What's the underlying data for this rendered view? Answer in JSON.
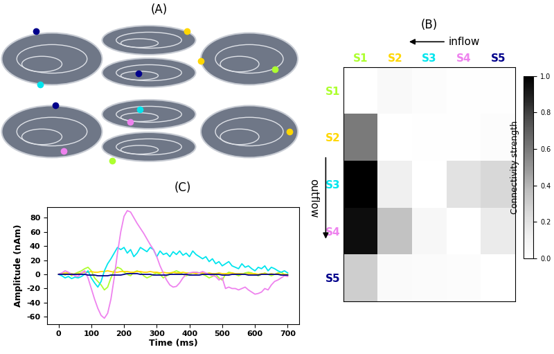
{
  "diagram": {
    "title": "(A)",
    "nodes": [
      {
        "color": "#adff2f"
      },
      {
        "color": "#ffd700"
      },
      {
        "color": "#00e5ee"
      },
      {
        "color": "#ee82ee"
      },
      {
        "color": "#00008b"
      }
    ]
  },
  "chart_data": [
    {
      "type": "heatmap",
      "title": "(B)",
      "categories": [
        "S1",
        "S2",
        "S3",
        "S4",
        "S5"
      ],
      "colors": [
        "#adff2f",
        "#ffd700",
        "#00e5ee",
        "#ee82ee",
        "#00008b"
      ],
      "annotations": [
        "inflow",
        "outflow"
      ],
      "cells": [
        [
          0.0,
          0.05,
          0.02,
          0.01,
          0.01
        ],
        [
          0.6,
          0.0,
          0.01,
          0.01,
          0.02
        ],
        [
          1.0,
          0.12,
          0.0,
          0.2,
          0.25
        ],
        [
          0.95,
          0.35,
          0.06,
          0.0,
          0.15
        ],
        [
          0.3,
          0.04,
          0.03,
          0.02,
          0.0
        ]
      ],
      "colorbar": {
        "label": "Connectivity strength",
        "range": [
          0,
          1
        ],
        "ticks": [
          {
            "value": 0,
            "label": "0.0"
          },
          {
            "value": 0.2,
            "label": "0.2"
          },
          {
            "value": 0.4,
            "label": "0.4"
          },
          {
            "value": 0.6,
            "label": "0.6"
          },
          {
            "value": 0.8,
            "label": "0.8"
          },
          {
            "value": 1,
            "label": "1.0"
          }
        ]
      }
    },
    {
      "type": "line",
      "title": "(C)",
      "x_label": "Time (ms)",
      "y_label": "Amplitude (nAm)",
      "x": [
        0,
        10,
        20,
        30,
        40,
        50,
        60,
        70,
        80,
        90,
        100,
        110,
        120,
        130,
        140,
        150,
        160,
        170,
        180,
        190,
        200,
        210,
        220,
        230,
        240,
        250,
        260,
        270,
        280,
        290,
        300,
        310,
        320,
        330,
        340,
        350,
        360,
        370,
        380,
        390,
        400,
        410,
        420,
        430,
        440,
        450,
        460,
        470,
        480,
        490,
        500,
        510,
        520,
        530,
        540,
        550,
        560,
        570,
        580,
        590,
        600,
        610,
        620,
        630,
        640,
        650,
        660,
        670,
        680,
        690,
        700
      ],
      "xlim": [
        -35,
        735
      ],
      "xticks": [
        0,
        100,
        200,
        300,
        400,
        500,
        600,
        700
      ],
      "ylim": [
        -70,
        95
      ],
      "yticks": [
        -60,
        -40,
        -20,
        0,
        20,
        40,
        60,
        80
      ],
      "series": [
        {
          "color": "#adff2f",
          "values": [
            0,
            2,
            -1,
            2,
            -2,
            1,
            3,
            5,
            8,
            10,
            5,
            -5,
            -10,
            -15,
            -22,
            -18,
            -5,
            5,
            10,
            8,
            3,
            0,
            -2,
            3,
            5,
            3,
            -2,
            -5,
            -3,
            0,
            2,
            0,
            -5,
            -2,
            0,
            3,
            5,
            3,
            0,
            -2,
            0,
            2,
            3,
            2,
            0,
            -2,
            -5,
            -3,
            0,
            -5,
            -8,
            0,
            3,
            2,
            0,
            -2,
            0,
            2,
            3,
            2,
            0,
            -2,
            0,
            2,
            0,
            -2,
            0,
            2,
            3,
            0,
            -2
          ]
        },
        {
          "color": "#ffd700",
          "values": [
            0,
            1,
            2,
            2,
            1,
            0,
            1,
            2,
            3,
            3,
            4,
            3,
            3,
            4,
            4,
            5,
            4,
            3,
            3,
            4,
            4,
            4,
            3,
            3,
            4,
            4,
            3,
            3,
            4,
            3,
            3,
            2,
            3,
            2,
            2,
            3,
            2,
            2,
            3,
            2,
            2,
            2,
            1,
            2,
            2,
            1,
            2,
            1,
            1,
            2,
            1,
            1,
            1,
            2,
            1,
            1,
            1,
            0,
            1,
            1,
            1,
            0,
            1,
            1,
            0,
            1,
            0,
            1,
            0,
            0,
            0
          ]
        },
        {
          "color": "#00e5ee",
          "values": [
            0,
            -2,
            -5,
            -3,
            -6,
            -4,
            -5,
            -3,
            0,
            5,
            -5,
            -12,
            -18,
            -10,
            5,
            15,
            22,
            30,
            38,
            35,
            38,
            30,
            35,
            25,
            30,
            38,
            35,
            32,
            38,
            35,
            25,
            33,
            28,
            30,
            25,
            32,
            28,
            33,
            27,
            30,
            25,
            33,
            28,
            25,
            22,
            25,
            18,
            22,
            15,
            18,
            12,
            15,
            18,
            12,
            10,
            8,
            15,
            10,
            12,
            8,
            5,
            10,
            8,
            12,
            5,
            10,
            8,
            5,
            3,
            5,
            2
          ]
        },
        {
          "color": "#ee82ee",
          "values": [
            0,
            2,
            5,
            3,
            0,
            -2,
            -3,
            2,
            5,
            -5,
            -20,
            -35,
            -48,
            -58,
            -62,
            -55,
            -35,
            -5,
            30,
            60,
            82,
            90,
            88,
            80,
            72,
            65,
            58,
            50,
            42,
            35,
            25,
            12,
            2,
            -8,
            -15,
            -18,
            -17,
            -12,
            -5,
            0,
            2,
            3,
            3,
            2,
            4,
            2,
            0,
            -2,
            -3,
            -8,
            -5,
            -20,
            -18,
            -20,
            -20,
            -22,
            -20,
            -18,
            -22,
            -25,
            -28,
            -27,
            -25,
            -20,
            -22,
            -15,
            -10,
            -8,
            -5,
            -2,
            -3
          ]
        },
        {
          "color": "#00008b",
          "values": [
            0,
            0,
            0,
            0,
            0,
            0,
            0,
            0,
            0,
            -1,
            -1,
            -1,
            -2,
            -2,
            -2,
            -2,
            -1,
            -1,
            -1,
            -1,
            0,
            1,
            1,
            1,
            1,
            0,
            0,
            0,
            0,
            -1,
            -1,
            -1,
            -1,
            -1,
            0,
            0,
            0,
            0,
            0,
            0,
            -1,
            -1,
            -1,
            -1,
            0,
            0,
            0,
            0,
            0,
            0,
            -1,
            -1,
            -1,
            0,
            0,
            0,
            0,
            0,
            -1,
            -1,
            -1,
            -1,
            0,
            0,
            0,
            0,
            0,
            0,
            -1,
            -1,
            -1
          ]
        }
      ]
    }
  ]
}
